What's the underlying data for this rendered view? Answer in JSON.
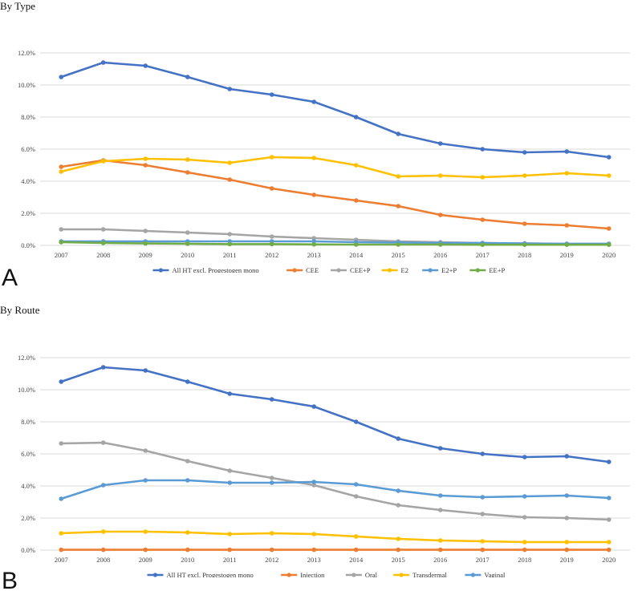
{
  "figure": {
    "panels": [
      {
        "title": "By Type",
        "letter": "A"
      },
      {
        "title": "By Route",
        "letter": "B"
      }
    ]
  },
  "chart_data": [
    {
      "type": "line",
      "title": "By Type",
      "x": [
        "2007",
        "2008",
        "2009",
        "2010",
        "2011",
        "2012",
        "2013",
        "2014",
        "2015",
        "2016",
        "2017",
        "2018",
        "2019",
        "2020"
      ],
      "y_ticks": [
        "0.0%",
        "2.0%",
        "4.0%",
        "6.0%",
        "8.0%",
        "10.0%",
        "12.0%"
      ],
      "ylim": [
        0,
        12
      ],
      "grid": true,
      "legend_position": "bottom",
      "series": [
        {
          "name": "All HT excl. Progestogen mono",
          "color": "#4472c4",
          "values": [
            10.5,
            11.4,
            11.2,
            10.5,
            9.75,
            9.4,
            8.95,
            8.0,
            6.95,
            6.35,
            6.0,
            5.8,
            5.85,
            5.5
          ]
        },
        {
          "name": "CEE",
          "color": "#ed7d31",
          "values": [
            4.9,
            5.3,
            5.0,
            4.55,
            4.1,
            3.55,
            3.15,
            2.8,
            2.45,
            1.9,
            1.6,
            1.35,
            1.25,
            1.05
          ]
        },
        {
          "name": "CEE+P",
          "color": "#a5a5a5",
          "values": [
            1.0,
            1.0,
            0.9,
            0.8,
            0.7,
            0.55,
            0.45,
            0.35,
            0.25,
            0.2,
            0.15,
            0.12,
            0.1,
            0.1
          ]
        },
        {
          "name": "E2",
          "color": "#ffc000",
          "values": [
            4.6,
            5.25,
            5.4,
            5.35,
            5.15,
            5.5,
            5.45,
            5.0,
            4.3,
            4.35,
            4.25,
            4.35,
            4.5,
            4.35
          ]
        },
        {
          "name": "E2+P",
          "color": "#5b9bd5",
          "values": [
            0.25,
            0.25,
            0.25,
            0.25,
            0.25,
            0.25,
            0.25,
            0.2,
            0.18,
            0.15,
            0.15,
            0.12,
            0.1,
            0.1
          ]
        },
        {
          "name": "EE+P",
          "color": "#70ad47",
          "values": [
            0.2,
            0.15,
            0.12,
            0.1,
            0.08,
            0.08,
            0.06,
            0.05,
            0.05,
            0.05,
            0.04,
            0.04,
            0.04,
            0.04
          ]
        }
      ]
    },
    {
      "type": "line",
      "title": "By Route",
      "x": [
        "2007",
        "2008",
        "2009",
        "2010",
        "2011",
        "2012",
        "2013",
        "2014",
        "2015",
        "2016",
        "2017",
        "2018",
        "2019",
        "2020"
      ],
      "y_ticks": [
        "0.0%",
        "2.0%",
        "4.0%",
        "6.0%",
        "8.0%",
        "10.0%",
        "12.0%"
      ],
      "ylim": [
        0,
        12
      ],
      "grid": true,
      "legend_position": "bottom",
      "series": [
        {
          "name": "All HT excl. Progestogen mono",
          "color": "#4472c4",
          "values": [
            10.5,
            11.4,
            11.2,
            10.5,
            9.75,
            9.4,
            8.95,
            8.0,
            6.95,
            6.35,
            6.0,
            5.8,
            5.85,
            5.5
          ]
        },
        {
          "name": "Injection",
          "color": "#ed7d31",
          "values": [
            0.02,
            0.02,
            0.02,
            0.02,
            0.02,
            0.02,
            0.02,
            0.02,
            0.02,
            0.02,
            0.02,
            0.02,
            0.02,
            0.02
          ]
        },
        {
          "name": "Oral",
          "color": "#a5a5a5",
          "values": [
            6.65,
            6.7,
            6.2,
            5.55,
            4.95,
            4.5,
            4.05,
            3.35,
            2.8,
            2.5,
            2.25,
            2.05,
            2.0,
            1.9
          ]
        },
        {
          "name": "Transdermal",
          "color": "#ffc000",
          "values": [
            1.05,
            1.15,
            1.15,
            1.1,
            1.0,
            1.05,
            1.0,
            0.85,
            0.7,
            0.6,
            0.55,
            0.5,
            0.5,
            0.5
          ]
        },
        {
          "name": "Vaginal",
          "color": "#5b9bd5",
          "values": [
            3.2,
            4.05,
            4.35,
            4.35,
            4.2,
            4.2,
            4.25,
            4.1,
            3.7,
            3.4,
            3.3,
            3.35,
            3.4,
            3.25
          ]
        }
      ]
    }
  ]
}
